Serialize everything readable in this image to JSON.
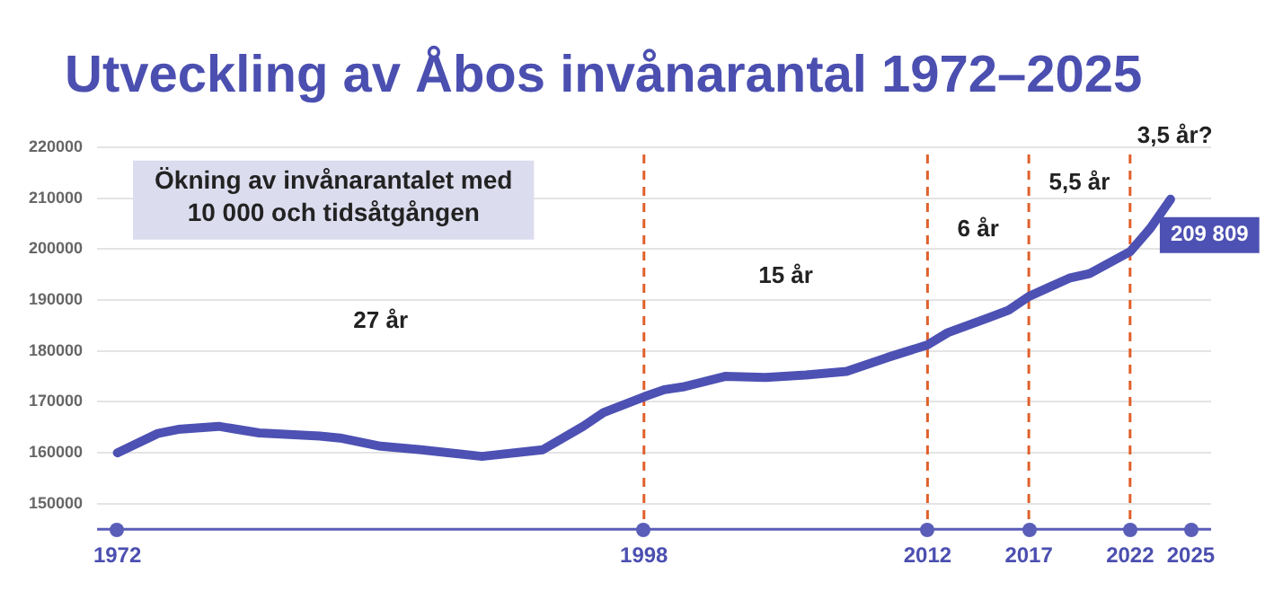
{
  "chart_data": {
    "type": "line",
    "title": "Utveckling av Åbos invånarantal 1972–2025",
    "x": [
      1972,
      1974,
      1975,
      1977,
      1979,
      1982,
      1983,
      1985,
      1987,
      1990,
      1993,
      1995,
      1996,
      1998,
      1999,
      2000,
      2002,
      2004,
      2006,
      2008,
      2010,
      2012,
      2013,
      2015,
      2016,
      2017,
      2018,
      2019,
      2020,
      2022,
      2023,
      2024
    ],
    "series": [
      {
        "color": "#4d51b3",
        "values": [
          160000,
          163800,
          164600,
          165200,
          163900,
          163300,
          162900,
          161300,
          160600,
          159300,
          160600,
          165200,
          167900,
          171000,
          172400,
          173000,
          175000,
          174800,
          175300,
          176000,
          178700,
          181200,
          183600,
          186500,
          188000,
          190700,
          192500,
          194300,
          195200,
          199500,
          204100,
          209809
        ],
        "value_labels": [
          null,
          null,
          null,
          null,
          null,
          null,
          null,
          null,
          null,
          null,
          null,
          null,
          null,
          null,
          null,
          null,
          null,
          null,
          null,
          null,
          null,
          null,
          null,
          null,
          null,
          null,
          null,
          null,
          null,
          null,
          null,
          "209 809"
        ]
      }
    ],
    "xlim": [
      1971,
      2026
    ],
    "xticks": [
      1972,
      1998,
      2012,
      2017,
      2022,
      2025
    ],
    "ylim": [
      145000,
      220000
    ],
    "yticks": [
      150000,
      160000,
      170000,
      180000,
      190000,
      200000,
      210000,
      220000
    ],
    "grid": "y",
    "legend": false,
    "marker": "none",
    "line_style": "solid",
    "ref_lines": [
      {
        "axis": "x",
        "value": 1998,
        "color": "#e0602a",
        "line_style": "dashed"
      },
      {
        "axis": "x",
        "value": 2012,
        "color": "#e0602a",
        "line_style": "dashed"
      },
      {
        "axis": "x",
        "value": 2017,
        "color": "#e0602a",
        "line_style": "dashed"
      },
      {
        "axis": "x",
        "value": 2022,
        "color": "#e0602a",
        "line_style": "dashed"
      }
    ],
    "annotations": [
      "Ökning av invånarantalet med\n10 000 och tidsåtgången",
      "27 år",
      "15 år",
      "6 år",
      "5,5 år",
      "3,5 år?"
    ]
  }
}
